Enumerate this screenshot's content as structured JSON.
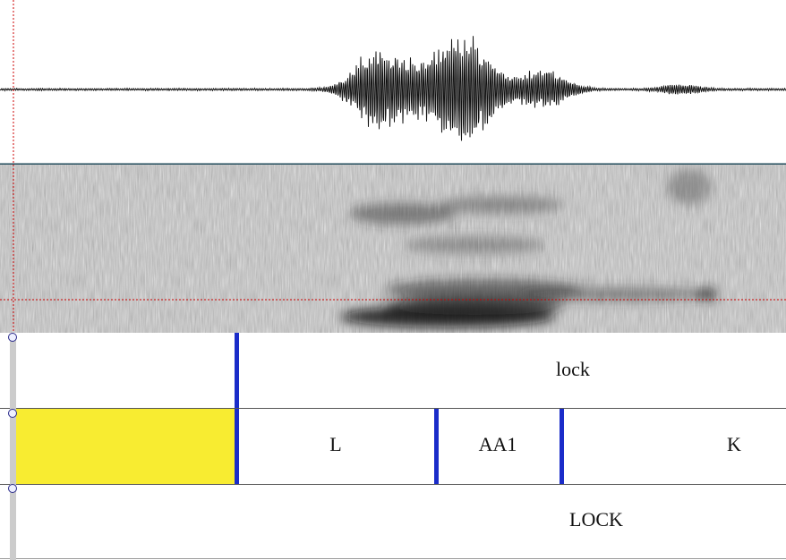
{
  "editor": {
    "waveform": {
      "name": "waveform-view",
      "color": "#111111"
    },
    "spectrogram": {
      "name": "spectrogram-view"
    },
    "cursor": {
      "color": "#cc0000"
    },
    "selection_color": "#f8ec31",
    "boundary_color": "#1a2cc9",
    "tiers": [
      {
        "name": "word-tier",
        "intervals": [
          {
            "label": ""
          },
          {
            "label": "lock"
          }
        ]
      },
      {
        "name": "phone-tier",
        "intervals": [
          {
            "label": ""
          },
          {
            "label": "L"
          },
          {
            "label": "AA1"
          },
          {
            "label": "K"
          }
        ]
      },
      {
        "name": "transcript-tier",
        "intervals": [
          {
            "label": "LOCK"
          }
        ]
      }
    ]
  }
}
